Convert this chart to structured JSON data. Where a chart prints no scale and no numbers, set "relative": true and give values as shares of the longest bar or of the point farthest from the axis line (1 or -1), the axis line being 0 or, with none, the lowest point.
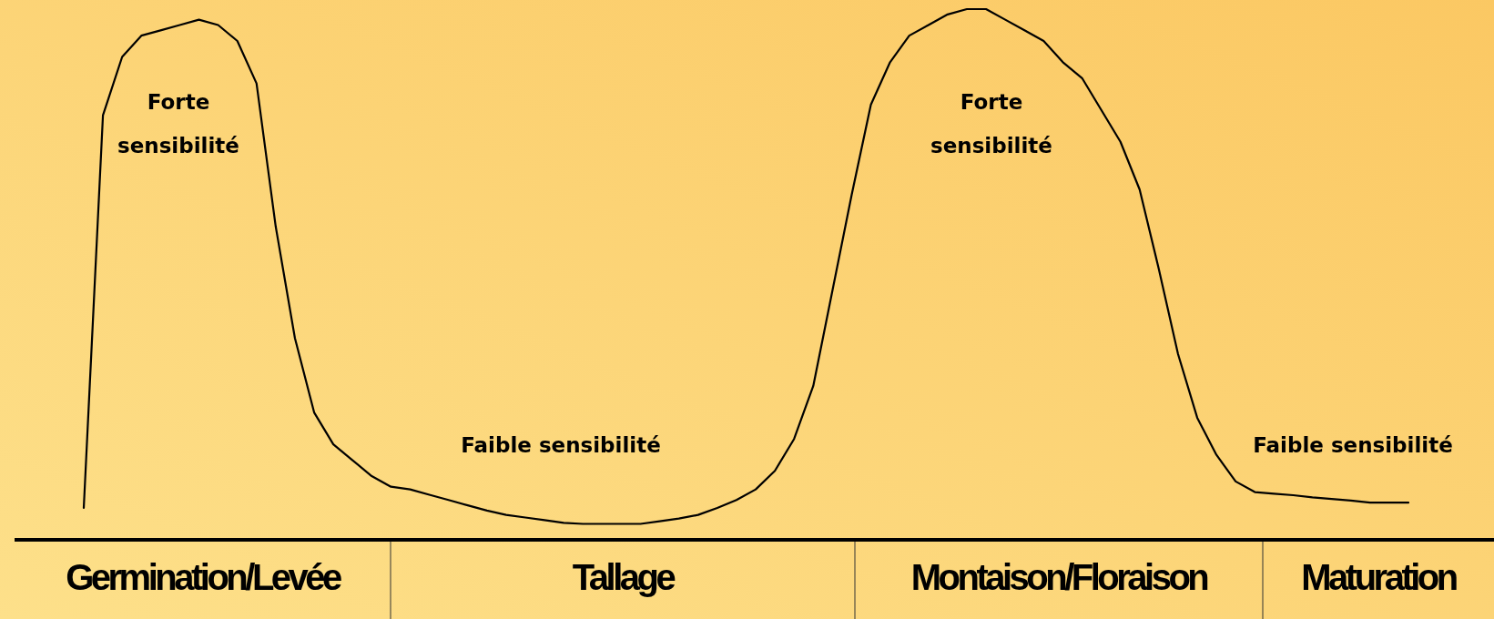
{
  "chart_data": {
    "type": "line",
    "relative": true,
    "categories": [
      null,
      null,
      null,
      null,
      null,
      null,
      null,
      null,
      null,
      null,
      null,
      null,
      null,
      null,
      null,
      null,
      null,
      null,
      null,
      null,
      null,
      null,
      null,
      null,
      null,
      null,
      null,
      null,
      null,
      null,
      null,
      null,
      null,
      null,
      null,
      null,
      null,
      null,
      null,
      null,
      null,
      null,
      null,
      null,
      null,
      null,
      null,
      null,
      null,
      null,
      null,
      null,
      null,
      null,
      null,
      null,
      null,
      null,
      null,
      null,
      null,
      null,
      null,
      null,
      null,
      null,
      null,
      null,
      null,
      null
    ],
    "series": [
      {
        "color": "#000000",
        "values": [
          0.06,
          0.8,
          0.91,
          0.95,
          0.96,
          0.97,
          0.98,
          0.97,
          0.94,
          0.86,
          0.59,
          0.38,
          0.24,
          0.18,
          0.15,
          0.12,
          0.1,
          0.095,
          0.085,
          0.075,
          0.065,
          0.055,
          0.047,
          0.042,
          0.037,
          0.032,
          0.03,
          0.03,
          0.03,
          0.03,
          0.035,
          0.04,
          0.047,
          0.06,
          0.075,
          0.095,
          0.13,
          0.19,
          0.29,
          0.47,
          0.65,
          0.82,
          0.9,
          0.95,
          0.97,
          0.99,
          1,
          1,
          0.98,
          0.96,
          0.94,
          0.9,
          0.87,
          0.81,
          0.75,
          0.66,
          0.51,
          0.35,
          0.23,
          0.16,
          0.11,
          0.09,
          0.087,
          0.084,
          0.08,
          0.077,
          0.074,
          0.07,
          0.07,
          0.07
        ]
      }
    ],
    "annotations": [
      "Forte sensibilité",
      "Forte sensibilité",
      "Faible sensibilité",
      "Faible sensibilité",
      "Germination/Levée",
      "Tallage",
      "Montaison/Floraison",
      "Maturation"
    ]
  }
}
